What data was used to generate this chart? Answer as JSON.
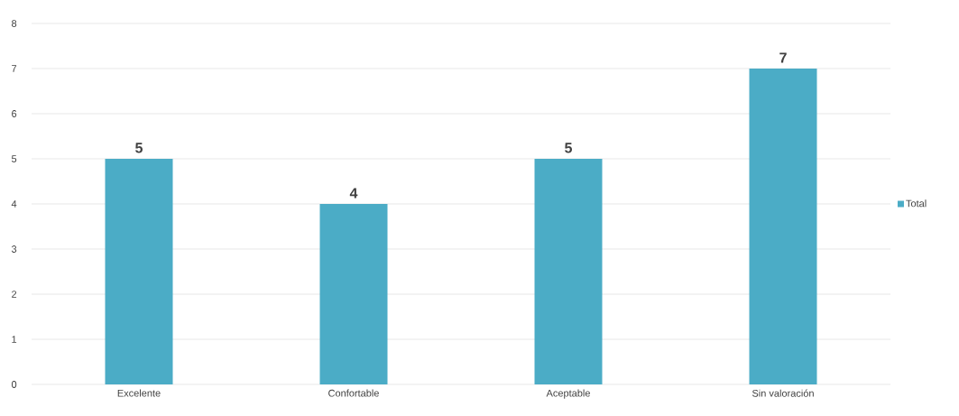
{
  "chart_data": {
    "type": "bar",
    "categories": [
      "Excelente",
      "Confortable",
      "Aceptable",
      "Sin valoración"
    ],
    "series": [
      {
        "name": "Total",
        "color": "#4bacc6",
        "values": [
          5,
          4,
          5,
          7
        ]
      }
    ],
    "ylim": [
      0,
      8
    ],
    "yticks": [
      0,
      1,
      2,
      3,
      4,
      5,
      6,
      7,
      8
    ],
    "grid": "y",
    "legend": "right",
    "data_labels": true
  }
}
